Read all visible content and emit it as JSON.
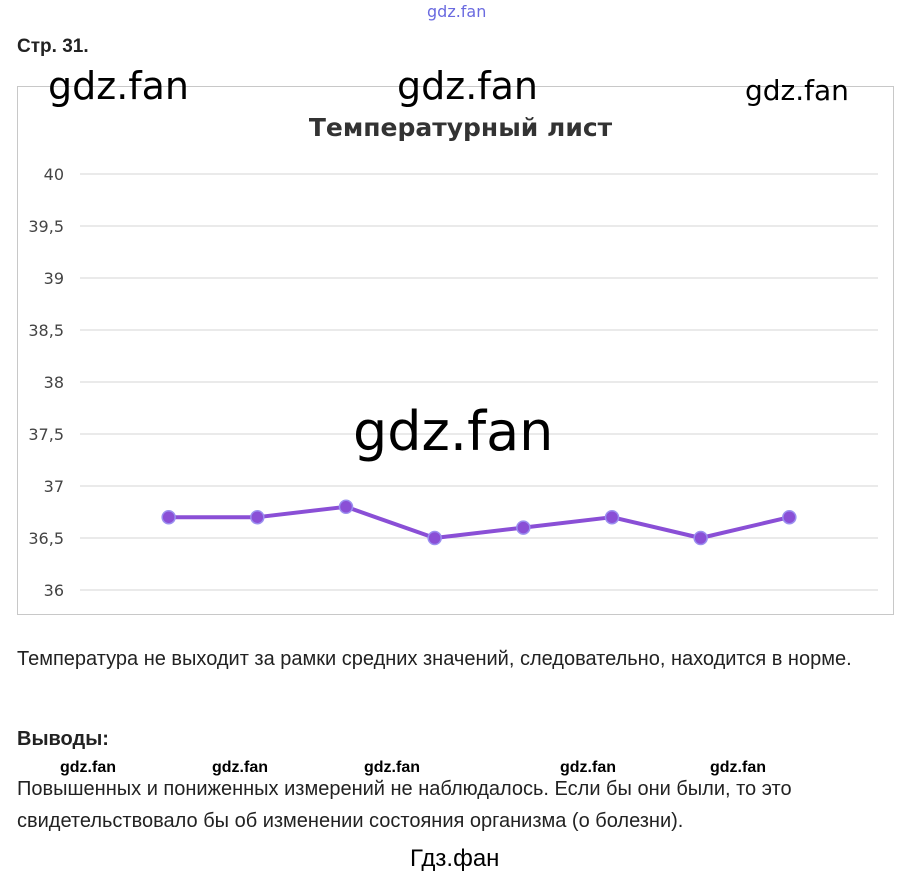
{
  "top_watermark": "gdz.fan",
  "page_label": "Стр. 31.",
  "watermarks": [
    "gdz.fan",
    "gdz.fan",
    "gdz.fan",
    "gdz.fan"
  ],
  "small_watermarks": [
    "gdz.fan",
    "gdz.fan",
    "gdz.fan",
    "gdz.fan",
    "gdz.fan"
  ],
  "footer": "Гдз.фан",
  "paragraph": "Температура не выходит за рамки средних значений, следовательно, находится в норме.",
  "conclusions_heading": "Выводы:",
  "conclusions_text": "Повышенных и пониженных измерений не наблюдалось. Если бы они были, то это свидетельствовало бы об изменении состояния организма (о болезни).",
  "chart_data": {
    "type": "line",
    "title": "Температурный лист",
    "xlabel": "",
    "ylabel": "",
    "ylim": [
      36,
      40
    ],
    "yticks": [
      "36",
      "36,5",
      "37",
      "37,5",
      "38",
      "38,5",
      "39",
      "39,5",
      "40"
    ],
    "grid": true,
    "color": "#8a4fd6",
    "values": [
      36.7,
      36.7,
      36.8,
      36.5,
      36.6,
      36.7,
      36.5,
      36.7
    ]
  }
}
